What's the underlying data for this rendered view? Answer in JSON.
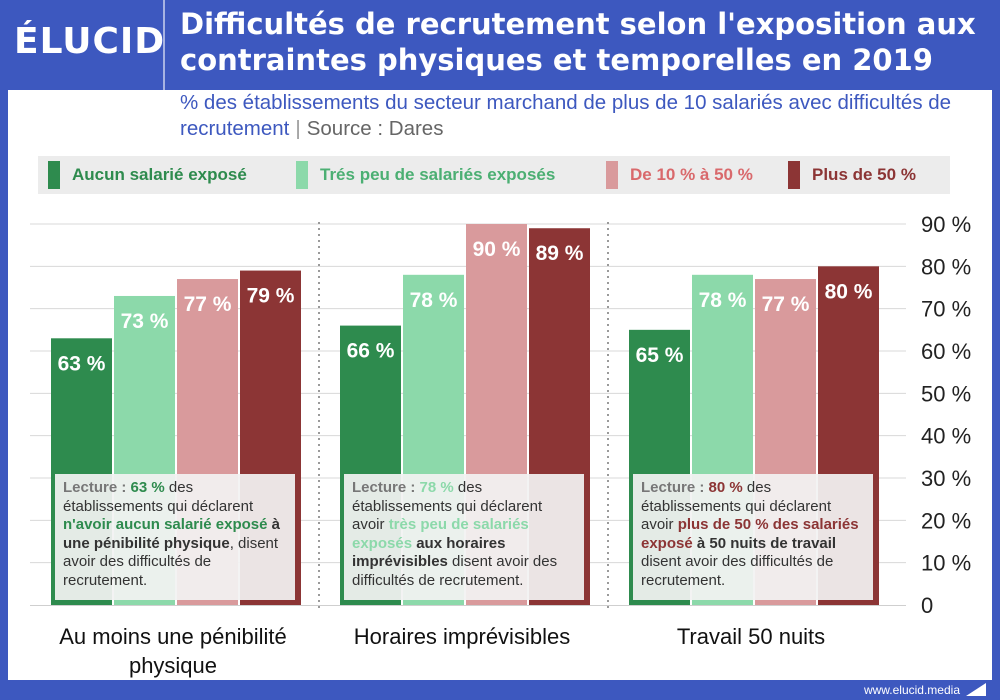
{
  "brand": {
    "logo": "ÉLUCID",
    "footer_url": "www.elucid.media"
  },
  "title": "Difficultés de recrutement selon l'exposition aux contraintes physiques et temporelles en 2019",
  "subtitle": {
    "text": "% des établissements du secteur marchand de plus de 10 salariés avec difficultés de recrutement",
    "separator": "|",
    "source": "Source : Dares"
  },
  "colors": {
    "brand_blue": "#3d58bf",
    "dark_green": "#2e8b4e",
    "light_green": "#8cd9aa",
    "pink": "#d99a9c",
    "dark_red": "#8c3535"
  },
  "readings": [
    {
      "keyword": "Lecture :",
      "value": "63 %",
      "t1": " des établissements qui déclarent ",
      "hl": "n'avoir aucun salarié exposé",
      "t2": " ",
      "b2": "à une pénibilité physique",
      "t3": ", disent avoir des difficultés de recrutement."
    },
    {
      "keyword": "Lecture :",
      "value": "78 %",
      "t1": " des établissements qui déclarent avoir ",
      "hl": "très peu de salariés exposés",
      "t2": " ",
      "b2": "aux horaires imprévisibles",
      "t3": " disent avoir des difficultés de recrutement."
    },
    {
      "keyword": "Lecture :",
      "value": "80 %",
      "t1": " des établissements qui déclarent avoir ",
      "hl": "plus de 50 % des salariés exposé",
      "t2": " ",
      "b2": "à 50 nuits de travail",
      "t3": " disent avoir des difficultés de recrutement."
    }
  ],
  "chart_data": {
    "type": "bar",
    "categories": [
      "Au moins une pénibilité physique",
      "Horaires imprévisibles",
      "Travail 50 nuits"
    ],
    "series": [
      {
        "name": "Aucun salarié exposé",
        "color": "#2e8b4e",
        "label_color": "#ffffff",
        "values": [
          63,
          66,
          65
        ],
        "labels": [
          "63 %",
          "66 %",
          "65 %"
        ]
      },
      {
        "name": "Trés peu de salariés exposés",
        "color": "#8cd9aa",
        "label_color": "#ffffff",
        "values": [
          73,
          78,
          78
        ],
        "labels": [
          "73 %",
          "78 %",
          "78 %"
        ]
      },
      {
        "name": "De 10 % à 50 %",
        "color": "#d99a9c",
        "label_color": "#ffffff",
        "values": [
          77,
          90,
          77
        ],
        "labels": [
          "77 %",
          "90 %",
          "77 %"
        ]
      },
      {
        "name": "Plus de 50 %",
        "color": "#8c3535",
        "label_color": "#ffffff",
        "values": [
          79,
          89,
          80
        ],
        "labels": [
          "79 %",
          "89 %",
          "80 %"
        ]
      }
    ],
    "legend_text_colors": [
      "#2e8b4e",
      "#4caf73",
      "#d9696c",
      "#8c3535"
    ],
    "yticks": [
      "0",
      "10 %",
      "20 %",
      "30 %",
      "40 %",
      "50 %",
      "60 %",
      "70 %",
      "80 %",
      "90 %"
    ],
    "ylim": [
      0,
      90
    ],
    "ytick_step": 10,
    "grid": true,
    "legend_position": "top",
    "y_axis_position": "right"
  }
}
